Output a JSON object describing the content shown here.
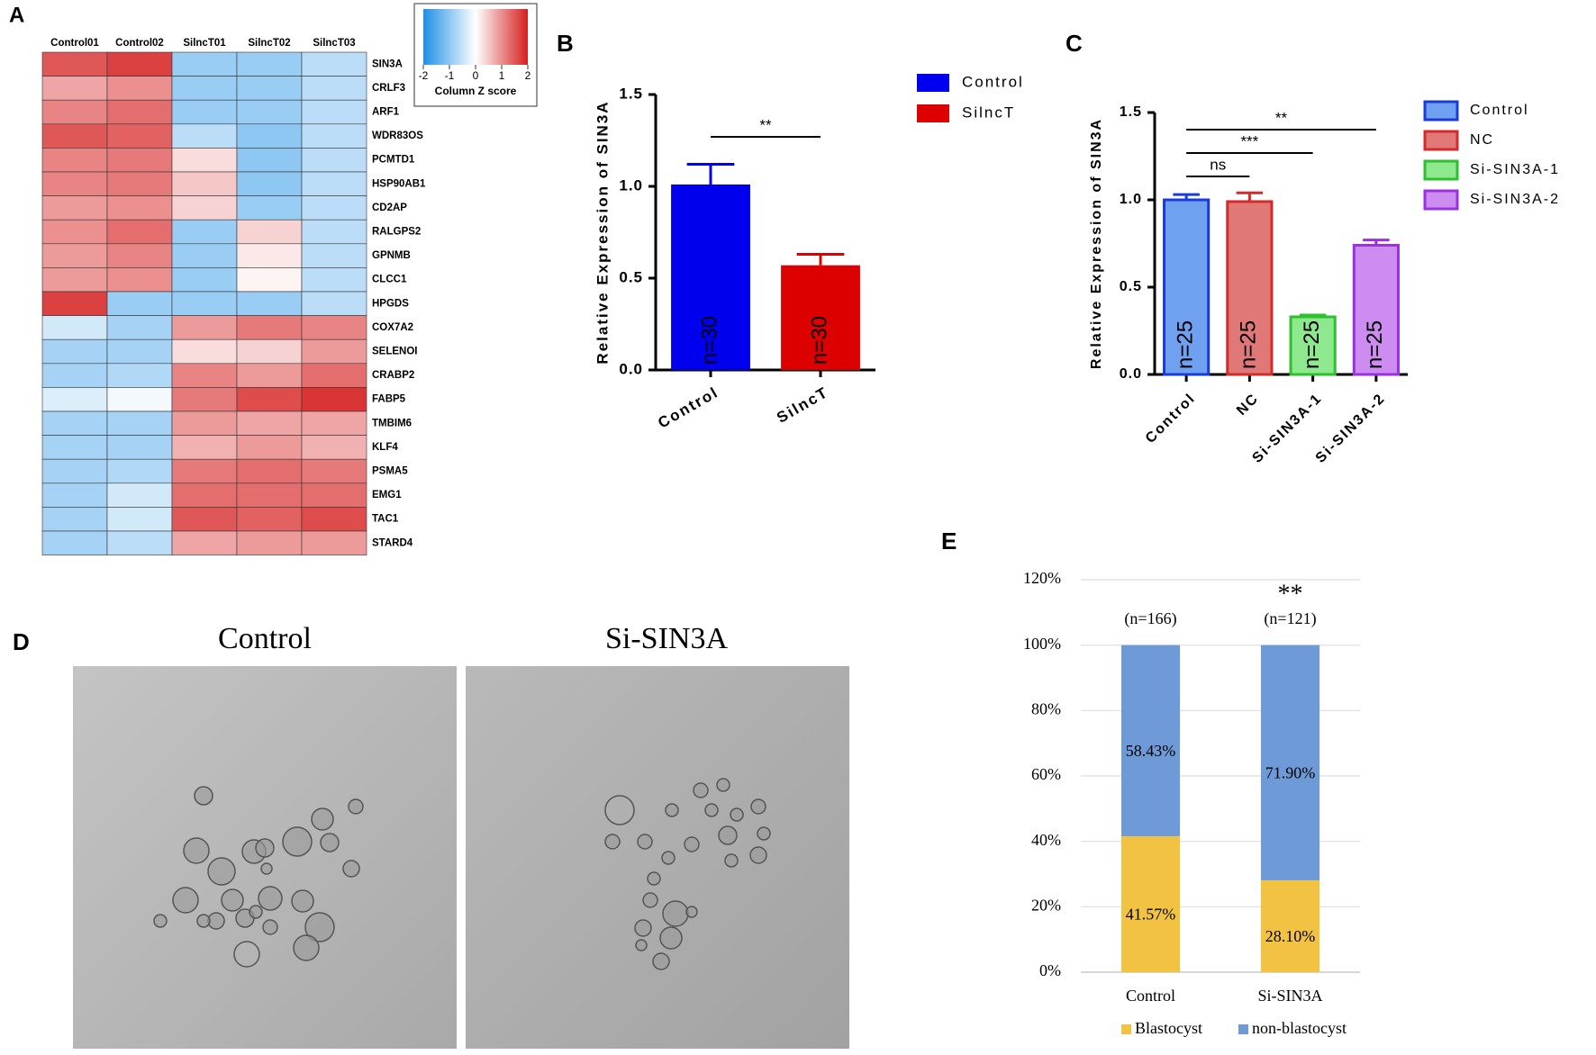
{
  "chart_data": [
    {
      "type": "heatmap",
      "panel_label": "A",
      "columns": [
        "Control01",
        "Control02",
        "SilncT01",
        "SilncT02",
        "SilncT03"
      ],
      "rows": [
        "SIN3A",
        "CRLF3",
        "ARF1",
        "WDR83OS",
        "PCMTD1",
        "HSP90AB1",
        "CD2AP",
        "RALGPS2",
        "GPNMB",
        "CLCC1",
        "HPGDS",
        "COX7A2",
        "SELENOI",
        "CRABP2",
        "FABP5",
        "TMBIM6",
        "KLF4",
        "PSMA5",
        "EMG1",
        "TAC1",
        "STARD4"
      ],
      "values": [
        [
          1.5,
          1.7,
          -0.9,
          -0.9,
          -0.6
        ],
        [
          0.8,
          1.0,
          -0.9,
          -0.9,
          -0.6
        ],
        [
          1.1,
          1.3,
          -0.9,
          -0.9,
          -0.6
        ],
        [
          1.5,
          1.4,
          -0.6,
          -1.0,
          -0.6
        ],
        [
          1.1,
          1.2,
          0.3,
          -1.0,
          -0.6
        ],
        [
          1.1,
          1.2,
          0.5,
          -1.0,
          -0.6
        ],
        [
          0.9,
          1.0,
          0.4,
          -0.9,
          -0.6
        ],
        [
          1.0,
          1.3,
          -0.9,
          0.4,
          -0.6
        ],
        [
          0.9,
          1.1,
          -0.9,
          0.2,
          -0.6
        ],
        [
          0.9,
          1.0,
          -0.9,
          0.1,
          -0.6
        ],
        [
          1.7,
          -0.9,
          -0.9,
          -0.9,
          -0.6
        ],
        [
          -0.4,
          -0.8,
          0.9,
          1.2,
          1.1
        ],
        [
          -0.8,
          -0.8,
          0.3,
          0.4,
          0.9
        ],
        [
          -0.8,
          -0.7,
          1.1,
          0.9,
          1.3
        ],
        [
          -0.3,
          -0.1,
          1.2,
          1.6,
          1.8
        ],
        [
          -0.8,
          -0.8,
          0.9,
          0.8,
          0.8
        ],
        [
          -0.8,
          -0.8,
          0.7,
          0.9,
          0.7
        ],
        [
          -0.8,
          -0.7,
          1.2,
          1.3,
          1.2
        ],
        [
          -0.8,
          -0.4,
          1.3,
          1.3,
          1.3
        ],
        [
          -0.8,
          -0.4,
          1.5,
          1.4,
          1.6
        ],
        [
          -0.8,
          -0.6,
          0.8,
          0.9,
          0.9
        ]
      ],
      "colormap": [
        "#1f8fe6",
        "#ffffff",
        "#d61f1f"
      ],
      "colorbar_lim": [
        -2,
        2
      ],
      "colorbar_ticks": [
        -2,
        -1,
        0,
        1,
        2
      ],
      "colorbar_label": "Column Z score"
    },
    {
      "type": "bar",
      "panel_label": "B",
      "ylabel": "Relative Expression of SIN3A",
      "categories": [
        "Control",
        "SilncT"
      ],
      "values": [
        1.01,
        0.57
      ],
      "errors": [
        0.11,
        0.06
      ],
      "colors": [
        "#0000ee",
        "#dd0000"
      ],
      "bar_labels": [
        "n=30",
        "n=30"
      ],
      "significance": [
        {
          "text": "**",
          "between": [
            "Control",
            "SilncT"
          ]
        }
      ],
      "ylim": [
        0,
        1.5
      ],
      "yticks": [
        {
          "value": 0,
          "label": "0.0"
        },
        {
          "value": 0.5,
          "label": "0.5"
        },
        {
          "value": 1,
          "label": "1.0"
        },
        {
          "value": 1.5,
          "label": "1.5"
        }
      ]
    },
    {
      "type": "bar",
      "panel_label": "C",
      "ylabel": "Relative Expression of SIN3A",
      "categories": [
        "Control",
        "NC",
        "Si-SIN3A-1",
        "Si-SIN3A-2"
      ],
      "values": [
        1.0,
        0.99,
        0.33,
        0.74
      ],
      "errors": [
        0.03,
        0.05,
        0.01,
        0.03
      ],
      "colors": [
        "#70a0f0",
        "#e07878",
        "#8ee88e",
        "#cc8cf0"
      ],
      "edge_colors": [
        "#1a3bdc",
        "#d42a2a",
        "#2ec02e",
        "#9a30e0"
      ],
      "bar_labels": [
        "n=25",
        "n=25",
        "n=25",
        "n=25"
      ],
      "significance": [
        {
          "text": "**",
          "between": [
            "Control",
            "Si-SIN3A-2"
          ]
        },
        {
          "text": "***",
          "between": [
            "Control",
            "Si-SIN3A-1"
          ]
        },
        {
          "text": "ns",
          "between": [
            "Control",
            "NC"
          ]
        }
      ],
      "ylim": [
        0,
        1.5
      ],
      "yticks": [
        {
          "value": 0,
          "label": "0.0"
        },
        {
          "value": 0.5,
          "label": "0.5"
        },
        {
          "value": 1,
          "label": "1.0"
        },
        {
          "value": 1.5,
          "label": "1.5"
        }
      ]
    },
    {
      "type": "stacked_bar",
      "panel_label": "E",
      "categories": [
        "Control",
        "Si-SIN3A"
      ],
      "category_notes": [
        "(n=166)",
        "(n=121)"
      ],
      "significance": [
        {
          "text": "**",
          "at": "Si-SIN3A"
        }
      ],
      "series": [
        {
          "name": "Blastocyst",
          "color": "#f2c242",
          "values": [
            41.57,
            28.1
          ],
          "value_labels": [
            "41.57%",
            "28.10%"
          ]
        },
        {
          "name": "non-blastocyst",
          "color": "#6f9ad8",
          "values": [
            58.43,
            71.9
          ],
          "value_labels": [
            "58.43%",
            "71.90%"
          ]
        }
      ],
      "ylim": [
        0,
        120
      ],
      "grid": true,
      "yticks": [
        {
          "value": 0,
          "label": "0%"
        },
        {
          "value": 20,
          "label": "20%"
        },
        {
          "value": 40,
          "label": "40%"
        },
        {
          "value": 60,
          "label": "60%"
        },
        {
          "value": 80,
          "label": "80%"
        },
        {
          "value": 100,
          "label": "100%"
        },
        {
          "value": 120,
          "label": "120%"
        }
      ]
    }
  ],
  "image_panel": {
    "panel_label": "D",
    "titles": [
      "Control",
      "Si-SIN3A"
    ]
  }
}
